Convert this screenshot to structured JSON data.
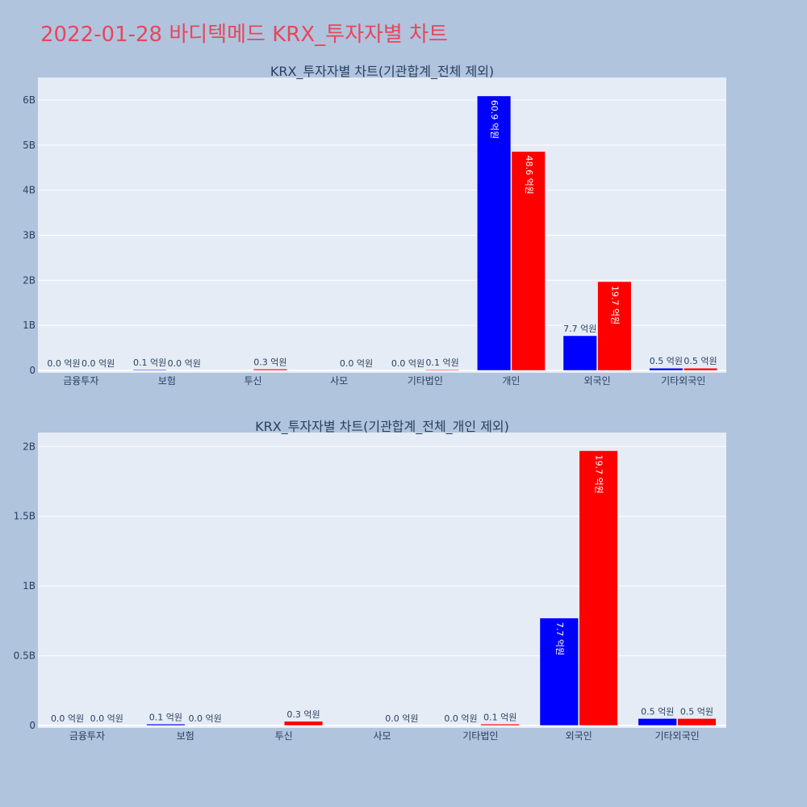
{
  "page": {
    "title": "2022-01-28 바디텍메드 KRX_투자자별 차트"
  },
  "colors": {
    "background": "#b0c4de",
    "plot_bg": "#e5ecf6",
    "series1": "#0000ff",
    "series2": "#ff0000",
    "title": "#e8465b"
  },
  "chart_data": [
    {
      "type": "bar",
      "title": "KRX_투자자별 차트(기관합계_전체 제외)",
      "categories": [
        "금융투자",
        "보험",
        "투신",
        "사모",
        "기타법인",
        "개인",
        "외국인",
        "기타외국인"
      ],
      "ylim": [
        0,
        6500000000
      ],
      "yticks": [
        0,
        1000000000,
        2000000000,
        3000000000,
        4000000000,
        5000000000,
        6000000000
      ],
      "ytick_labels": [
        "0",
        "1B",
        "2B",
        "3B",
        "4B",
        "5B",
        "6B"
      ],
      "grid": true,
      "series": [
        {
          "color": "#0000ff",
          "values": [
            0,
            10000000,
            0,
            0,
            0,
            6090000000,
            770000000,
            50000000
          ],
          "labels": [
            "0.0 억원",
            "0.1 억원",
            "",
            "",
            "0.0 억원",
            "60.9 억원",
            "7.7 억원",
            "0.5 억원"
          ]
        },
        {
          "color": "#ff0000",
          "values": [
            0,
            0,
            30000000,
            0,
            10000000,
            4860000000,
            1970000000,
            50000000
          ],
          "labels": [
            "0.0 억원",
            "0.0 억원",
            "0.3 억원",
            "0.0 억원",
            "0.1 억원",
            "48.6 억원",
            "19.7 억원",
            "0.5 억원"
          ]
        }
      ]
    },
    {
      "type": "bar",
      "title": "KRX_투자자별 차트(기관합계_전체_개인 제외)",
      "categories": [
        "금융투자",
        "보험",
        "투신",
        "사모",
        "기타법인",
        "외국인",
        "기타외국인"
      ],
      "ylim": [
        0,
        2100000000
      ],
      "yticks": [
        0,
        500000000,
        1000000000,
        1500000000,
        2000000000
      ],
      "ytick_labels": [
        "0",
        "0.5B",
        "1B",
        "1.5B",
        "2B"
      ],
      "grid": true,
      "series": [
        {
          "color": "#0000ff",
          "values": [
            0,
            10000000,
            0,
            0,
            0,
            770000000,
            50000000
          ],
          "labels": [
            "0.0 억원",
            "0.1 억원",
            "",
            "",
            "0.0 억원",
            "7.7 억원",
            "0.5 억원"
          ]
        },
        {
          "color": "#ff0000",
          "values": [
            0,
            0,
            30000000,
            0,
            10000000,
            1970000000,
            50000000
          ],
          "labels": [
            "0.0 억원",
            "0.0 억원",
            "0.3 억원",
            "0.0 억원",
            "0.1 억원",
            "19.7 억원",
            "0.5 억원"
          ]
        }
      ]
    }
  ]
}
